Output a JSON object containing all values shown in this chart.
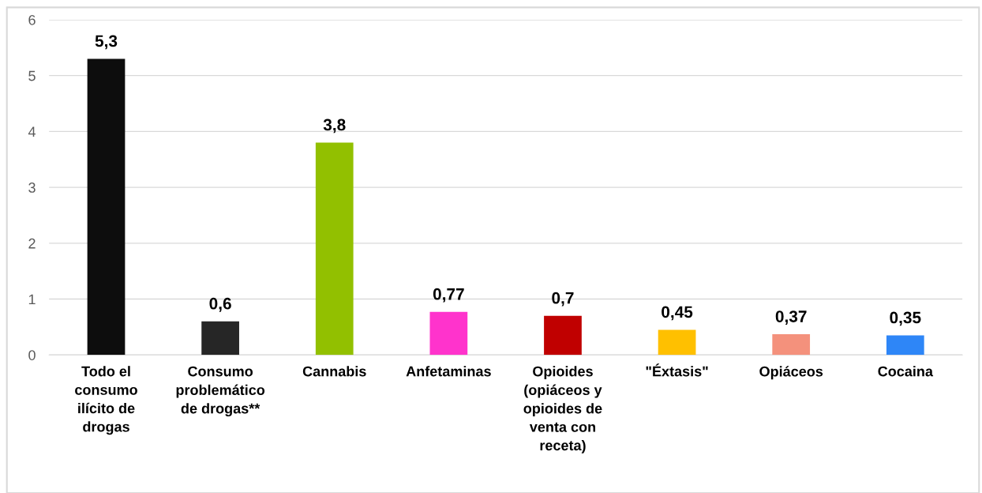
{
  "chart_data": {
    "type": "bar",
    "categories": [
      "Todo el\nconsumo\nilícito de\ndrogas",
      "Consumo\nproblemático\nde drogas**",
      "Cannabis",
      "Anfetaminas",
      "Opioides\n(opiáceos y\nopioides de\nventa con\nreceta)",
      "\"Éxtasis\"",
      "Opiáceos",
      "Cocaina"
    ],
    "values": [
      5.3,
      0.6,
      3.8,
      0.77,
      0.7,
      0.45,
      0.37,
      0.35
    ],
    "colors": [
      "#0d0d0d",
      "#262626",
      "#92c000",
      "#ff33cc",
      "#c00000",
      "#ffc000",
      "#f4917c",
      "#2e86f7"
    ],
    "value_labels": [
      "5,3",
      "0,6",
      "3,8",
      "0,77",
      "0,7",
      "0,45",
      "0,37",
      "0,35"
    ],
    "ylim": [
      0,
      6
    ],
    "yticks": [
      0,
      1,
      2,
      3,
      4,
      5,
      6
    ],
    "grid": "y"
  }
}
